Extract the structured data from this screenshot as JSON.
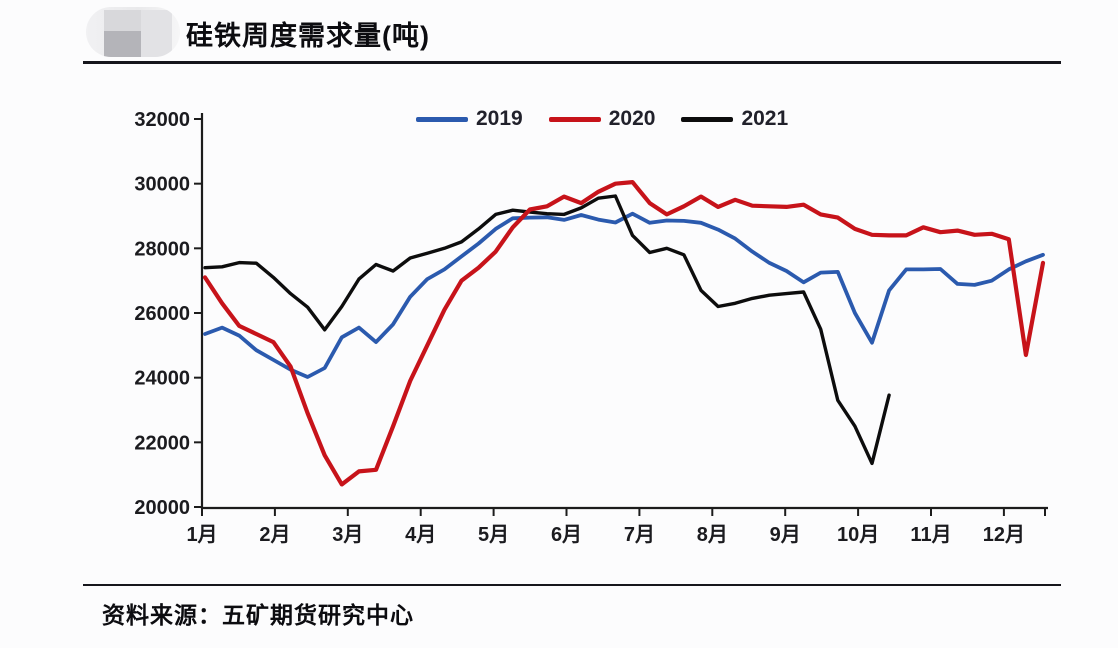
{
  "header": {
    "title": "硅铁周度需求量(吨)"
  },
  "footer": {
    "source": "资料来源：五矿期货研究中心"
  },
  "chart_data": {
    "type": "line",
    "title": "硅铁周度需求量(吨)",
    "unit": "吨",
    "granularity": "weekly",
    "grid": false,
    "legend_position": "top-center",
    "x_axis": {
      "tick_labels": [
        "1月",
        "2月",
        "3月",
        "4月",
        "5月",
        "6月",
        "7月",
        "8月",
        "9月",
        "10月",
        "11月",
        "12月"
      ]
    },
    "y_axis": {
      "min": 20000,
      "max": 32000,
      "tick_step": 2000,
      "tick_labels": [
        "20000",
        "22000",
        "24000",
        "26000",
        "28000",
        "30000",
        "32000"
      ]
    },
    "series": [
      {
        "name": "2019",
        "color": "#2b5aae",
        "values": [
          25350,
          25550,
          25300,
          24850,
          24550,
          24250,
          24020,
          24300,
          25250,
          25550,
          25100,
          25650,
          26500,
          27050,
          27350,
          27750,
          28150,
          28600,
          28930,
          28950,
          28960,
          28880,
          29030,
          28890,
          28800,
          29070,
          28790,
          28860,
          28850,
          28790,
          28580,
          28300,
          27900,
          27550,
          27300,
          26950,
          27250,
          27270,
          26000,
          25080,
          26700,
          27350,
          27350,
          27360,
          26900,
          26870,
          27000,
          27350,
          27600,
          27800
        ]
      },
      {
        "name": "2020",
        "color": "#c7131a",
        "values": [
          27100,
          26300,
          25600,
          25350,
          25100,
          24350,
          22900,
          21600,
          20700,
          21100,
          21150,
          22500,
          23900,
          25000,
          26100,
          27000,
          27400,
          27900,
          28650,
          29200,
          29300,
          29600,
          29400,
          29750,
          30000,
          30050,
          29400,
          29050,
          29300,
          29600,
          29280,
          29500,
          29320,
          29300,
          29280,
          29350,
          29050,
          28950,
          28600,
          28420,
          28400,
          28400,
          28650,
          28500,
          28550,
          28420,
          28450,
          28280,
          24700,
          27550
        ]
      },
      {
        "name": "2021",
        "color": "#0d0d0d",
        "values": [
          27400,
          27430,
          27560,
          27540,
          27100,
          26600,
          26180,
          25480,
          26200,
          27050,
          27500,
          27300,
          27700,
          27850,
          28000,
          28200,
          28600,
          29050,
          29180,
          29120,
          29070,
          29050,
          29250,
          29550,
          29620,
          28400,
          27870,
          28000,
          27800,
          26700,
          26200,
          26300,
          26450,
          26550,
          26600,
          26650,
          25500,
          23300,
          22500,
          21350,
          23460
        ]
      }
    ]
  }
}
